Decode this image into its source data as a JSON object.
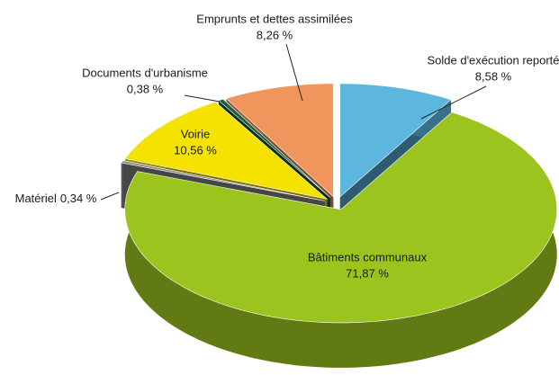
{
  "chart_data": {
    "type": "pie",
    "categories": [
      "Solde d'exécution reporté",
      "Bâtiments communaux",
      "Matériel",
      "Voirie",
      "Documents d'urbanisme",
      "Emprunts et dettes assimilées"
    ],
    "values": [
      8.58,
      71.87,
      0.34,
      10.56,
      0.38,
      8.26
    ],
    "value_labels": [
      "8,58 %",
      "71,87 %",
      "0,34 %",
      "10,56 %",
      "0,38 %",
      "8,26 %"
    ],
    "colors": [
      "#5cb6dd",
      "#9cc41e",
      "#8c8c8c",
      "#f6e200",
      "#1d5e3a",
      "#f0965c"
    ]
  }
}
